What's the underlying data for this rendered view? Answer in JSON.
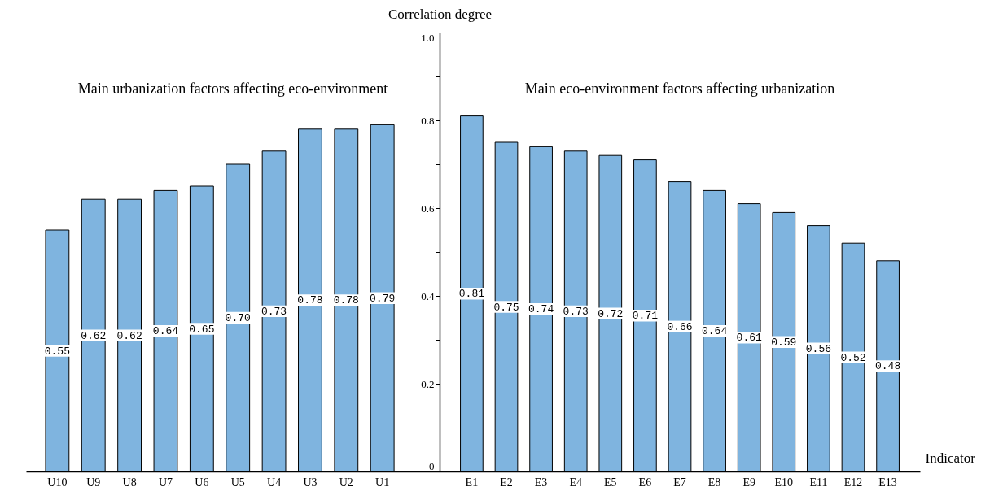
{
  "chart_data": [
    {
      "type": "bar",
      "title": "Main urbanization factors affecting eco-environment",
      "categories": [
        "U10",
        "U9",
        "U8",
        "U7",
        "U6",
        "U5",
        "U4",
        "U3",
        "U2",
        "U1"
      ],
      "values": [
        0.55,
        0.62,
        0.62,
        0.64,
        0.65,
        0.7,
        0.73,
        0.78,
        0.78,
        0.79
      ],
      "value_labels": [
        "0.55",
        "0.62",
        "0.62",
        "0.64",
        "0.65",
        "0.70",
        "0.73",
        "0.78",
        "0.78",
        "0.79"
      ],
      "color": "#7fb4df",
      "ylim": [
        0,
        1
      ],
      "tick_labels": "x"
    },
    {
      "type": "bar",
      "title": "Main eco-environment factors affecting urbanization",
      "xlabel": "Indicator",
      "ylabel": "Correlation degree",
      "categories": [
        "E1",
        "E2",
        "E3",
        "E4",
        "E5",
        "E6",
        "E7",
        "E8",
        "E9",
        "E10",
        "E11",
        "E12",
        "E13"
      ],
      "values": [
        0.81,
        0.75,
        0.74,
        0.73,
        0.72,
        0.71,
        0.66,
        0.64,
        0.61,
        0.59,
        0.56,
        0.52,
        0.48
      ],
      "value_labels": [
        "0.81",
        "0.75",
        "0.74",
        "0.73",
        "0.72",
        "0.71",
        "0.66",
        "0.64",
        "0.61",
        "0.59",
        "0.56",
        "0.52",
        "0.48"
      ],
      "color": "#7fb4df",
      "ylim": [
        0,
        1
      ],
      "yticks": [
        0,
        {
          "value": 0.1,
          "label": null
        },
        0.2,
        {
          "value": 0.3,
          "label": null
        },
        0.4,
        {
          "value": 0.5,
          "label": null
        },
        0.6,
        {
          "value": 0.7,
          "label": null
        },
        0.8,
        {
          "value": 0.9,
          "label": null
        },
        {
          "value": 1,
          "label": "1.0"
        }
      ]
    }
  ]
}
